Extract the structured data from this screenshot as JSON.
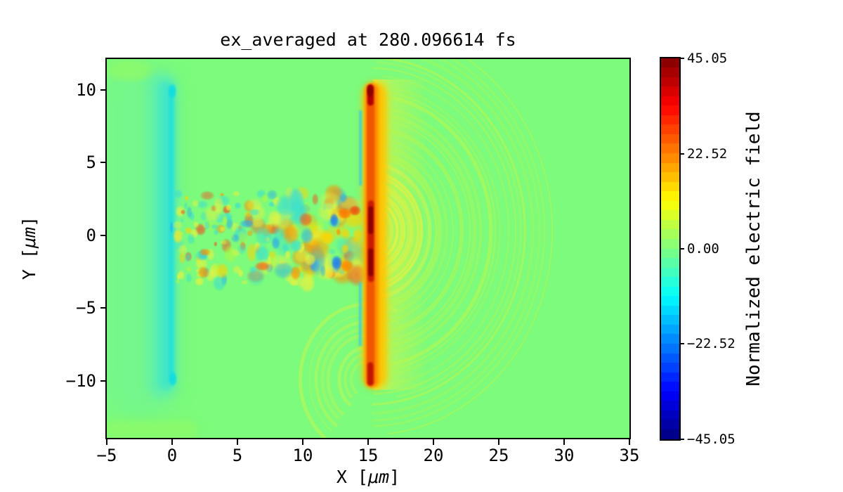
{
  "figure": {
    "title": "ex_averaged at 280.096614 fs",
    "background": "#ffffff"
  },
  "axes": {
    "x": {
      "prefix": "X [",
      "unit": "μm",
      "suffix": "]",
      "lim": [
        -5,
        35
      ],
      "ticks": [
        {
          "value": -5,
          "label": "−5"
        },
        {
          "value": 0,
          "label": "0"
        },
        {
          "value": 5,
          "label": "5"
        },
        {
          "value": 10,
          "label": "10"
        },
        {
          "value": 15,
          "label": "15"
        },
        {
          "value": 20,
          "label": "20"
        },
        {
          "value": 25,
          "label": "25"
        },
        {
          "value": 30,
          "label": "30"
        },
        {
          "value": 35,
          "label": "35"
        }
      ]
    },
    "y": {
      "prefix": "Y [",
      "unit": "μm",
      "suffix": "]",
      "lim": [
        -13.9,
        12.1
      ],
      "ticks": [
        {
          "value": 10,
          "label": "10"
        },
        {
          "value": 5,
          "label": "5"
        },
        {
          "value": 0,
          "label": "0"
        },
        {
          "value": -5,
          "label": "−5"
        },
        {
          "value": -10,
          "label": "−10"
        }
      ]
    }
  },
  "colorbar": {
    "label": "Normalized electric field",
    "lim": [
      -45.05,
      45.05
    ],
    "levels": 40,
    "colormap": "jet",
    "ticks": [
      {
        "value": 45.05,
        "label": "45.05"
      },
      {
        "value": 22.52,
        "label": "22.52"
      },
      {
        "value": 0,
        "label": "0.00"
      },
      {
        "value": -22.52,
        "label": "−22.52"
      },
      {
        "value": -45.05,
        "label": "−45.05"
      }
    ]
  },
  "chart_data": {
    "type": "heatmap",
    "title": "ex_averaged at 280.096614 fs",
    "xlabel": "X [μm]",
    "ylabel": "Y [μm]",
    "xlim": [
      -5,
      35
    ],
    "ylim": [
      -13.9,
      12.1
    ],
    "clim": [
      -45.05,
      45.05
    ],
    "colormap": "jet",
    "grid": false,
    "field_description": "Laser-wakefield PIC snapshot of averaged Ex. Background field ~0 (green). A negative (cyan, ~-10) back-propagating sheet sits at x~-1..0 spanning y=-10..10 with bright tips at y=±10. A turbulent wake of alternating ±20 speckles fills 0<x<15, |y|<3. A strong positive ionization front (+30..45, red/dark-red core) stands at x~15 spanning y=-10..10, flanked by +10..20 orange/yellow, with yellow-green diffraction arcs (+3..8) fanning right to x~29.",
    "features": [
      {
        "type": "fill",
        "color": "#7cfb7c",
        "value": 0
      },
      {
        "type": "stadium",
        "x0": -5.3,
        "x1": 0.45,
        "y0": -12.6,
        "y1": 11.8,
        "color": "#6ff39c",
        "alpha": 0.5,
        "blur": 12,
        "value": -3
      },
      {
        "type": "blob",
        "cx": -3.2,
        "cy": 11.3,
        "rx": 2.2,
        "ry": 0.9,
        "color": "#9efb55",
        "alpha": 0.5,
        "value": 3
      },
      {
        "type": "stadium",
        "x0": -5.3,
        "x1": 2.0,
        "y0": -14.0,
        "y1": -12.7,
        "color": "#a0fa55",
        "alpha": 0.4,
        "blur": 6,
        "value": 3
      },
      {
        "type": "stadium",
        "x0": -1.9,
        "x1": 0.35,
        "y0": -11.2,
        "y1": 11.2,
        "color": "#5eefae",
        "alpha": 0.9,
        "blur": 7,
        "value": -5
      },
      {
        "type": "stadium",
        "x0": -1.05,
        "x1": 0.15,
        "y0": -10.6,
        "y1": 10.6,
        "color": "#43e7c6",
        "alpha": 0.95,
        "blur": 4,
        "value": -8
      },
      {
        "type": "stadium",
        "x0": -0.28,
        "x1": 0.12,
        "y0": -10.1,
        "y1": 10.25,
        "color": "#25dfd8",
        "alpha": 0.95,
        "blur": 2,
        "value": -11
      },
      {
        "type": "blob",
        "cx": 0.02,
        "cy": 9.9,
        "rx": 0.35,
        "ry": 0.55,
        "color": "#10dce2",
        "alpha": 0.95,
        "value": -13
      },
      {
        "type": "blob",
        "cx": 0.06,
        "cy": -9.85,
        "rx": 0.35,
        "ry": 0.55,
        "color": "#10dce2",
        "alpha": 0.95,
        "value": -13
      },
      {
        "type": "speckles",
        "x0": 0.4,
        "x1": 14.3,
        "y0": -3.3,
        "y1": 2.9,
        "count": 230,
        "seed": 11,
        "rmin": 0.2,
        "rmax": 0.75,
        "palette": [
          "#eef23c",
          "#eef23c",
          "#ffd400",
          "#ff9000",
          "#f25022",
          "#3ce0d0",
          "#28a8f0",
          "#b2f83e",
          "#eef23c",
          "#3ce0d0"
        ],
        "alpha": 0.8,
        "value": "±20"
      },
      {
        "type": "blob",
        "cx": 0.45,
        "cy": -0.05,
        "rx": 0.4,
        "ry": 0.55,
        "color": "#f0e830",
        "alpha": 0.85,
        "value": 15
      },
      {
        "type": "blob",
        "cx": -0.05,
        "cy": 0.55,
        "rx": 0.12,
        "ry": 0.45,
        "color": "#28b4f0",
        "alpha": 0.9,
        "value": -25
      },
      {
        "type": "blob",
        "cx": 12.4,
        "cy": 1.05,
        "rx": 0.35,
        "ry": 0.5,
        "color": "#1e7ef0",
        "alpha": 0.9,
        "value": -30
      },
      {
        "type": "blob",
        "cx": 13.2,
        "cy": 1.5,
        "rx": 0.55,
        "ry": 0.4,
        "color": "#ff7a00",
        "alpha": 0.95,
        "value": 28
      },
      {
        "type": "blob",
        "cx": 14.0,
        "cy": 1.7,
        "rx": 0.5,
        "ry": 0.38,
        "color": "#f04a10",
        "alpha": 0.9,
        "value": 32
      },
      {
        "type": "blob",
        "cx": 12.6,
        "cy": -1.9,
        "rx": 0.45,
        "ry": 0.55,
        "color": "#1e7ef0",
        "alpha": 0.95,
        "value": -30
      },
      {
        "type": "blob",
        "cx": 13.4,
        "cy": -2.1,
        "rx": 0.55,
        "ry": 0.45,
        "color": "#ff8a00",
        "alpha": 0.95,
        "value": 28
      },
      {
        "type": "blob",
        "cx": 11.9,
        "cy": -0.2,
        "rx": 0.6,
        "ry": 0.45,
        "color": "#ffd400",
        "alpha": 0.9,
        "value": 20
      },
      {
        "type": "hglow",
        "x0": 15.4,
        "x1": 19.6,
        "y0": -10.6,
        "y1": 10.7,
        "color": "#eef23c",
        "alpha": 0.85,
        "value": 8
      },
      {
        "type": "arcs",
        "cx": 15.1,
        "cy": 0.3,
        "r0": 2.2,
        "r1": 13.8,
        "n": 26,
        "a0": -86,
        "a1": 86,
        "clipx": 15.3,
        "color": "#b8f84e",
        "amin": 0.25,
        "amax": 0.6,
        "wmin": 2,
        "wmax": 7,
        "seed": 5,
        "value": 5
      },
      {
        "type": "arcs",
        "cx": 15.1,
        "cy": 0.3,
        "r0": 1.2,
        "r1": 4.6,
        "n": 9,
        "a0": -90,
        "a1": 90,
        "clipx": 15.3,
        "color": "#f0f23c",
        "amin": 0.35,
        "amax": 0.7,
        "wmin": 3,
        "wmax": 8,
        "seed": 9,
        "value": 10
      },
      {
        "type": "arcs",
        "cx": 15.0,
        "cy": -9.9,
        "r0": 1.2,
        "r1": 5.2,
        "n": 8,
        "a0": 60,
        "a1": 230,
        "clipx": -99,
        "color": "#c8f84e",
        "amin": 0.3,
        "amax": 0.6,
        "wmin": 2.5,
        "wmax": 6,
        "seed": 3,
        "value": 5
      },
      {
        "type": "stadium",
        "x0": 14.55,
        "x1": 16.45,
        "y0": -10.55,
        "y1": 10.55,
        "color": "#ffc400",
        "alpha": 0.95,
        "blur": 4,
        "value": 20
      },
      {
        "type": "stadium",
        "x0": 14.75,
        "x1": 15.8,
        "y0": -10.45,
        "y1": 10.45,
        "color": "#ff8c00",
        "alpha": 1,
        "blur": 2,
        "value": 28
      },
      {
        "type": "stadium",
        "x0": 14.9,
        "x1": 15.5,
        "y0": -10.35,
        "y1": 10.35,
        "color": "#f05800",
        "alpha": 1,
        "blur": 1,
        "value": 34
      },
      {
        "type": "stadium",
        "x0": 14.95,
        "x1": 15.42,
        "y0": 8.9,
        "y1": 10.35,
        "color": "#b00000",
        "alpha": 1,
        "blur": 1,
        "value": 42
      },
      {
        "type": "blob",
        "cx": 15.15,
        "cy": 9.9,
        "rx": 0.3,
        "ry": 0.5,
        "color": "#8c0000",
        "alpha": 1,
        "value": 45
      },
      {
        "type": "stadium",
        "x0": 14.98,
        "x1": 15.45,
        "y0": -3.2,
        "y1": 2.4,
        "color": "#c81c00",
        "alpha": 1,
        "blur": 1,
        "value": 40
      },
      {
        "type": "stadium",
        "x0": 15.02,
        "x1": 15.38,
        "y0": 0.1,
        "y1": 2.0,
        "color": "#8c0000",
        "alpha": 1,
        "blur": 1,
        "value": 45
      },
      {
        "type": "stadium",
        "x0": 15.02,
        "x1": 15.38,
        "y0": -2.8,
        "y1": -0.9,
        "color": "#8c0000",
        "alpha": 1,
        "blur": 1,
        "value": 45
      },
      {
        "type": "stadium",
        "x0": 14.95,
        "x1": 15.4,
        "y0": -10.3,
        "y1": -8.7,
        "color": "#c01800",
        "alpha": 1,
        "blur": 1,
        "value": 40
      },
      {
        "type": "stadium",
        "x0": 14.32,
        "x1": 14.52,
        "y0": 3.4,
        "y1": 8.6,
        "color": "#30d0e8",
        "alpha": 0.85,
        "blur": 1,
        "value": -12
      },
      {
        "type": "stadium",
        "x0": 14.3,
        "x1": 14.5,
        "y0": -7.6,
        "y1": -3.2,
        "color": "#30d0e8",
        "alpha": 0.85,
        "blur": 1,
        "value": -12
      }
    ]
  }
}
